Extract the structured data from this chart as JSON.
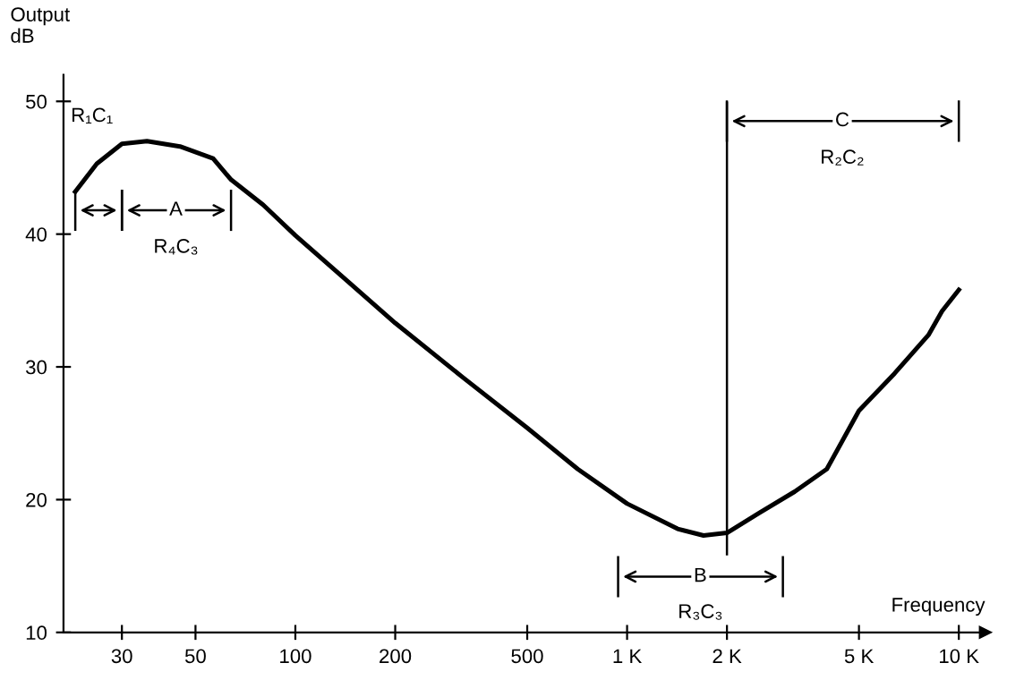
{
  "chart_data": {
    "type": "line",
    "xlabel": "Frequency",
    "ylabel": "Output\ndB",
    "log": "x",
    "xlim": [
      20,
      12000
    ],
    "ylim": [
      10,
      52
    ],
    "xticks": [
      30,
      50,
      100,
      200,
      500,
      {
        "value": 1000,
        "label": "1 K"
      },
      {
        "value": 2000,
        "label": "2 K"
      },
      {
        "value": 5000,
        "label": "5 K"
      },
      {
        "value": 10000,
        "label": "10 K"
      }
    ],
    "yticks": [
      10,
      20,
      30,
      40,
      50
    ],
    "grid": false,
    "marker": "none",
    "line_style": "solid",
    "series": [
      {
        "color": "#000000",
        "x": [
          21.7,
          25.2,
          30,
          35.7,
          44.9,
          56.5,
          64,
          80,
          100,
          143,
          200,
          320,
          500,
          710,
          1000,
          1420,
          1700,
          2000,
          2500,
          3200,
          4000,
          5000,
          6400,
          8100,
          8900,
          10000
        ],
        "values": [
          43.2,
          45.3,
          46.8,
          47.0,
          46.6,
          45.7,
          44.1,
          42.2,
          39.9,
          36.5,
          33.3,
          29.2,
          25.4,
          22.3,
          19.7,
          17.8,
          17.3,
          17.5,
          19.0,
          20.6,
          22.3,
          26.7,
          29.5,
          32.4,
          34.2,
          35.8
        ]
      }
    ],
    "ref_lines": [
      {
        "axis": "x",
        "value": 2000
      }
    ],
    "annotations": [
      "R₁C₁",
      "A",
      "R₄C₃",
      "B",
      "R₃C₃",
      "C",
      "R₂C₂"
    ]
  }
}
